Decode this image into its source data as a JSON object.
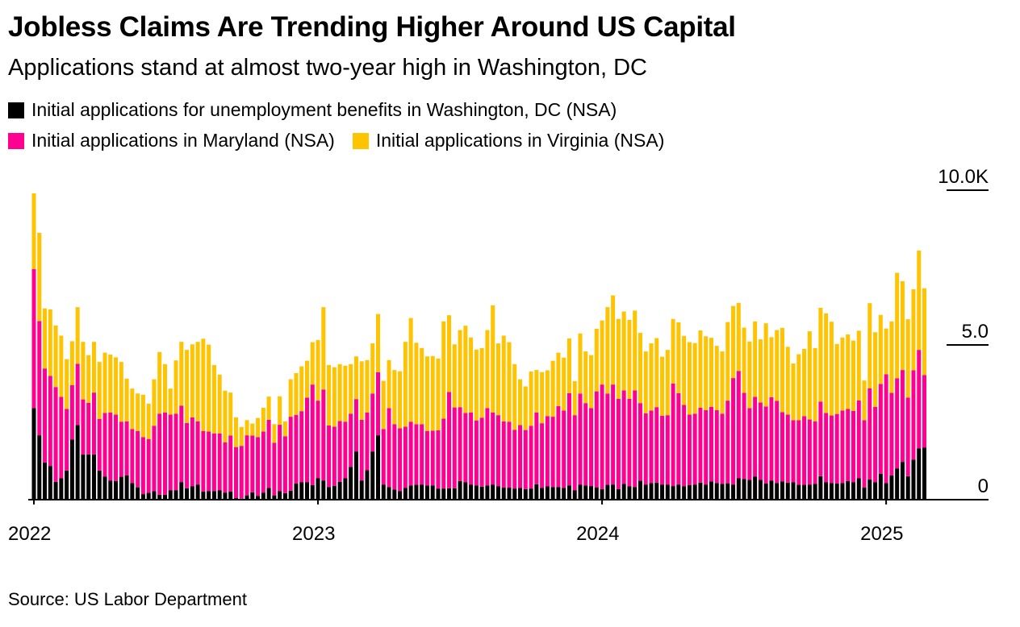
{
  "title": "Jobless Claims Are Trending Higher Around US Capital",
  "subtitle": "Applications stand at almost two-year high in Washington, DC",
  "source": "Source: US Labor Department",
  "colors": {
    "dc": "#000000",
    "md": "#FF0090",
    "va": "#FFC300"
  },
  "legend": [
    {
      "label": "Initial applications for unemployment benefits in Washington, DC (NSA)",
      "color": "#000000"
    },
    {
      "label": "Initial applications in Maryland (NSA)",
      "color": "#FF0090"
    },
    {
      "label": "Initial applications in Virginia (NSA)",
      "color": "#FFC300"
    }
  ],
  "chart_data": {
    "type": "bar",
    "stacked": true,
    "title": "Jobless Claims Are Trending Higher Around US Capital",
    "xlabel": "",
    "ylabel": "",
    "x_unit": "weeks since start of 2022",
    "ylim": [
      0,
      10
    ],
    "y_ticks": [
      {
        "value": 0,
        "label": "0"
      },
      {
        "value": 5,
        "label": "5.0"
      },
      {
        "value": 10,
        "label": "10.0K"
      }
    ],
    "x_ticks": [
      {
        "value": 0,
        "label": "2022"
      },
      {
        "value": 52,
        "label": "2023"
      },
      {
        "value": 104,
        "label": "2024"
      },
      {
        "value": 156,
        "label": "2025"
      }
    ],
    "grid": false,
    "legend_position": "top-left",
    "series": [
      {
        "name": "Initial applications for unemployment benefits in Washington, DC (NSA)",
        "values": [
          2.96,
          2.08,
          1.2,
          1.09,
          0.58,
          0.69,
          0.94,
          1.94,
          2.41,
          1.46,
          1.46,
          1.46,
          0.94,
          0.75,
          0.62,
          0.6,
          0.74,
          0.79,
          0.54,
          0.4,
          0.18,
          0.22,
          0.28,
          0.16,
          0.16,
          0.3,
          0.3,
          0.56,
          0.37,
          0.43,
          0.49,
          0.26,
          0.28,
          0.28,
          0.3,
          0.23,
          0.26,
          0.05,
          0.03,
          0.14,
          0.24,
          0.12,
          0.23,
          0.38,
          0.14,
          0.28,
          0.21,
          0.29,
          0.52,
          0.56,
          0.56,
          0.47,
          0.69,
          0.62,
          0.41,
          0.45,
          0.58,
          0.69,
          1.06,
          1.55,
          0.62,
          0.95,
          1.55,
          2.08,
          0.49,
          0.41,
          0.33,
          0.28,
          0.38,
          0.46,
          0.48,
          0.49,
          0.46,
          0.46,
          0.36,
          0.36,
          0.37,
          0.37,
          0.6,
          0.56,
          0.49,
          0.46,
          0.42,
          0.46,
          0.49,
          0.43,
          0.39,
          0.39,
          0.36,
          0.38,
          0.34,
          0.36,
          0.5,
          0.38,
          0.43,
          0.41,
          0.41,
          0.38,
          0.46,
          0.3,
          0.49,
          0.46,
          0.44,
          0.4,
          0.34,
          0.48,
          0.49,
          0.34,
          0.51,
          0.43,
          0.41,
          0.61,
          0.49,
          0.54,
          0.55,
          0.49,
          0.49,
          0.44,
          0.49,
          0.43,
          0.47,
          0.49,
          0.55,
          0.49,
          0.59,
          0.54,
          0.51,
          0.53,
          0.49,
          0.69,
          0.67,
          0.64,
          0.75,
          0.64,
          0.52,
          0.62,
          0.54,
          0.59,
          0.55,
          0.56,
          0.48,
          0.48,
          0.49,
          0.51,
          0.76,
          0.56,
          0.54,
          0.52,
          0.54,
          0.6,
          0.56,
          0.69,
          0.39,
          0.65,
          0.56,
          0.84,
          0.54,
          0.78,
          1.01,
          1.22,
          0.76,
          1.29,
          1.66,
          1.68
        ]
      },
      {
        "name": "Initial applications in Maryland (NSA)",
        "values": [
          4.49,
          3.69,
          3.04,
          2.91,
          3.06,
          2.63,
          1.99,
          1.76,
          1.98,
          1.78,
          1.67,
          2.0,
          1.67,
          2.05,
          2.2,
          2.15,
          1.78,
          1.74,
          1.74,
          1.82,
          1.84,
          1.74,
          2.11,
          2.62,
          2.66,
          2.45,
          2.48,
          2.48,
          2.11,
          2.23,
          2.04,
          1.96,
          1.92,
          1.86,
          1.84,
          1.62,
          1.81,
          1.65,
          1.71,
          1.94,
          1.83,
          1.9,
          1.97,
          2.2,
          1.7,
          2.14,
          1.84,
          2.39,
          2.22,
          2.3,
          2.74,
          3.25,
          2.51,
          2.94,
          1.99,
          1.91,
          1.96,
          1.83,
          1.72,
          1.7,
          1.96,
          1.87,
          1.88,
          2.04,
          1.79,
          2.55,
          2.11,
          2.03,
          1.98,
          2.06,
          1.96,
          1.95,
          1.76,
          1.77,
          1.88,
          2.26,
          3.11,
          2.61,
          2.39,
          2.24,
          2.33,
          2.1,
          2.23,
          2.5,
          2.33,
          2.3,
          2.14,
          2.13,
          1.9,
          2.03,
          1.91,
          2.03,
          2.32,
          2.09,
          2.27,
          2.27,
          2.61,
          2.5,
          2.98,
          2.43,
          2.94,
          2.66,
          2.52,
          3.1,
          3.38,
          2.95,
          3.23,
          2.92,
          3.02,
          2.83,
          3.12,
          2.51,
          2.3,
          2.34,
          2.44,
          2.22,
          2.24,
          3.31,
          2.95,
          2.63,
          2.28,
          2.29,
          2.42,
          2.4,
          2.41,
          2.35,
          2.27,
          2.67,
          3.44,
          3.47,
          2.78,
          2.32,
          2.57,
          2.5,
          2.49,
          2.69,
          2.65,
          2.24,
          2.2,
          2.01,
          2.09,
          2.22,
          2.1,
          2.02,
          2.41,
          2.24,
          2.18,
          2.25,
          2.34,
          2.33,
          2.31,
          2.52,
          2.18,
          2.95,
          2.44,
          2.9,
          3.51,
          2.67,
          2.91,
          2.97,
          2.54,
          2.89,
          3.18,
          2.35
        ]
      },
      {
        "name": "Initial applications in Virginia (NSA)",
        "values": [
          2.45,
          2.85,
          1.94,
          2.15,
          1.99,
          1.98,
          1.61,
          1.42,
          1.83,
          1.86,
          1.54,
          1.64,
          1.84,
          1.95,
          1.87,
          1.85,
          1.93,
          1.38,
          1.31,
          1.21,
          1.37,
          1.14,
          1.5,
          1.99,
          1.56,
          0.84,
          1.72,
          2.06,
          2.36,
          2.36,
          2.57,
          2.98,
          2.81,
          2.21,
          1.9,
          1.67,
          1.39,
          0.96,
          0.61,
          0.49,
          0.39,
          0.62,
          0.77,
          0.75,
          0.6,
          0.92,
          0.48,
          1.21,
          1.35,
          1.45,
          1.19,
          1.37,
          1.96,
          2.66,
          1.95,
          1.92,
          1.84,
          1.81,
          1.6,
          1.38,
          1.89,
          1.69,
          1.62,
          1.88,
          1.56,
          1.55,
          1.75,
          1.84,
          2.74,
          3.35,
          2.63,
          2.46,
          2.41,
          2.41,
          2.32,
          3.14,
          2.48,
          2.04,
          2.49,
          2.82,
          2.42,
          2.29,
          2.25,
          2.52,
          3.46,
          2.32,
          2.77,
          2.57,
          2.12,
          1.48,
          1.41,
          1.75,
          1.37,
          1.65,
          1.48,
          1.81,
          1.73,
          1.71,
          1.77,
          1.1,
          1.94,
          1.67,
          1.71,
          2.02,
          2.07,
          2.79,
          2.88,
          2.58,
          2.55,
          2.55,
          2.58,
          2.27,
          2.0,
          2.17,
          2.23,
          1.91,
          2.11,
          2.09,
          2.29,
          2.23,
          2.34,
          2.28,
          2.5,
          2.39,
          2.23,
          2.08,
          2.01,
          2.54,
          2.33,
          2.2,
          2.11,
          2.15,
          2.44,
          2.04,
          2.69,
          1.94,
          2.29,
          2.72,
          2.19,
          1.83,
          2.13,
          2.17,
          2.85,
          2.37,
          3.03,
          3.22,
          3.03,
          2.26,
          2.36,
          2.41,
          2.27,
          2.25,
          1.28,
          2.75,
          2.41,
          2.23,
          1.48,
          2.31,
          3.41,
          2.87,
          2.53,
          2.62,
          3.21,
          2.8
        ]
      }
    ]
  }
}
